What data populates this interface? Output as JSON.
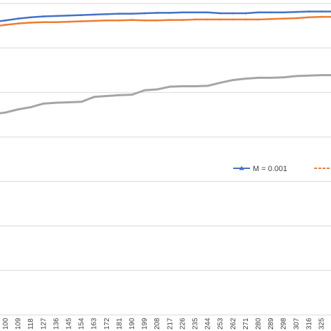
{
  "chart_data": {
    "type": "line",
    "title": "",
    "xlabel": "",
    "ylabel": "",
    "grid": true,
    "legend_position": "right",
    "x": [
      100,
      109,
      118,
      127,
      136,
      145,
      154,
      163,
      172,
      181,
      190,
      199,
      208,
      217,
      226,
      235,
      244,
      253,
      262,
      271,
      280,
      289,
      298,
      307,
      316,
      325
    ],
    "x_tick_labels": [
      "100",
      "109",
      "118",
      "127",
      "136",
      "145",
      "154",
      "163",
      "172",
      "181",
      "190",
      "199",
      "208",
      "217",
      "226",
      "235",
      "244",
      "253",
      "262",
      "271",
      "280",
      "289",
      "298",
      "307",
      "316",
      "325"
    ],
    "ylim": [
      0,
      7
    ],
    "series": [
      {
        "name": "M = 0.001",
        "color": "#4472C4",
        "marker": "triangle",
        "values": [
          6.62,
          6.66,
          6.69,
          6.71,
          6.72,
          6.73,
          6.74,
          6.75,
          6.76,
          6.77,
          6.77,
          6.78,
          6.79,
          6.79,
          6.8,
          6.8,
          6.8,
          6.78,
          6.78,
          6.78,
          6.8,
          6.8,
          6.8,
          6.81,
          6.82,
          6.82
        ]
      },
      {
        "name": "",
        "color": "#ED7D31",
        "marker": "square",
        "values": [
          6.52,
          6.55,
          6.57,
          6.58,
          6.58,
          6.59,
          6.6,
          6.61,
          6.62,
          6.62,
          6.63,
          6.62,
          6.62,
          6.63,
          6.63,
          6.64,
          6.64,
          6.64,
          6.64,
          6.64,
          6.64,
          6.65,
          6.66,
          6.67,
          6.69,
          6.7
        ]
      },
      {
        "name": "",
        "color": "#A5A5A5",
        "marker": "circle",
        "values": [
          4.55,
          4.62,
          4.67,
          4.75,
          4.77,
          4.78,
          4.79,
          4.9,
          4.92,
          4.94,
          4.95,
          5.05,
          5.07,
          5.13,
          5.14,
          5.14,
          5.15,
          5.22,
          5.28,
          5.31,
          5.33,
          5.33,
          5.34,
          5.37,
          5.38,
          5.39
        ]
      }
    ]
  }
}
